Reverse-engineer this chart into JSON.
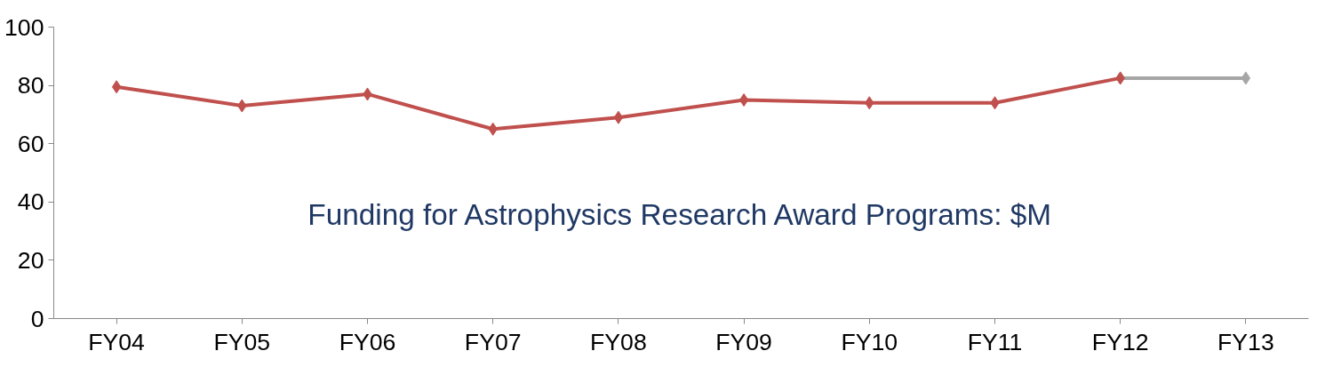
{
  "chart_data": {
    "type": "line",
    "title": "Funding for Astrophysics Research Award Programs: $M",
    "categories": [
      "FY04",
      "FY05",
      "FY06",
      "FY07",
      "FY08",
      "FY09",
      "FY10",
      "FY11",
      "FY12",
      "FY13"
    ],
    "series": [
      {
        "color": "#c0504d",
        "values": [
          79.5,
          73,
          77,
          65,
          69,
          75,
          74,
          74,
          82.5,
          null
        ]
      },
      {
        "color": "#a6a6a6",
        "values": [
          null,
          null,
          null,
          null,
          null,
          null,
          null,
          null,
          82.5,
          82.5
        ]
      }
    ],
    "ylim": [
      0,
      100
    ],
    "yticks": [
      0,
      20,
      40,
      60,
      80,
      100
    ],
    "marker": "diamond",
    "line_style": "solid",
    "grid": false
  }
}
